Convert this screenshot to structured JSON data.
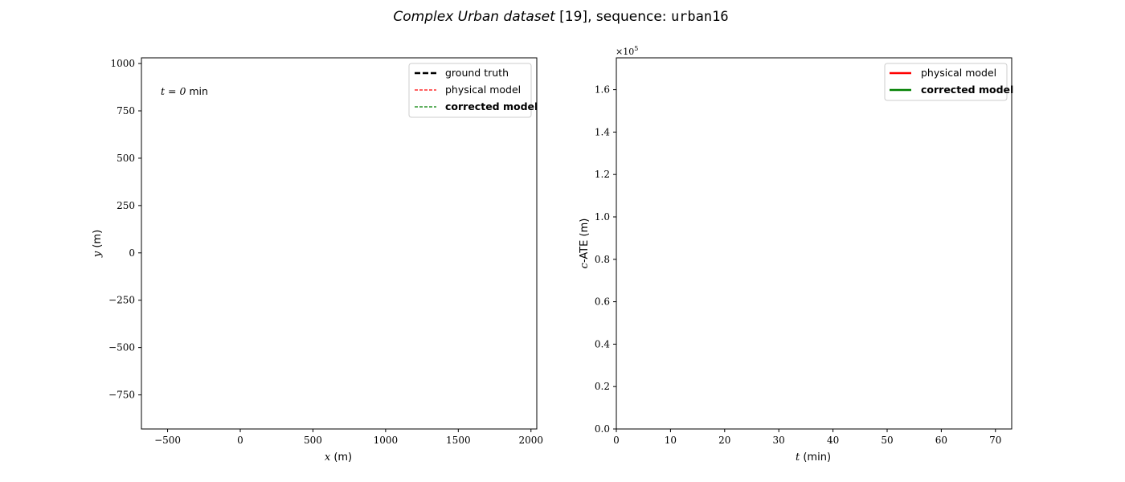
{
  "figure": {
    "title_italic": "Complex Urban dataset",
    "title_rest": " [19], sequence: ",
    "title_mono": "urban16"
  },
  "chart_data": [
    {
      "type": "line",
      "title": "",
      "xlabel_var": "x",
      "xlabel_unit": " (m)",
      "ylabel_var": "y",
      "ylabel_unit": " (m)",
      "xlim": [
        -680,
        2040
      ],
      "ylim": [
        -930,
        1030
      ],
      "xticks": [
        {
          "value": -500,
          "label": "−500"
        },
        {
          "value": 0,
          "label": "0"
        },
        {
          "value": 500,
          "label": "500"
        },
        {
          "value": 1000,
          "label": "1000"
        },
        {
          "value": 1500,
          "label": "1500"
        },
        {
          "value": 2000,
          "label": "2000"
        }
      ],
      "yticks": [
        {
          "value": -750,
          "label": "−750"
        },
        {
          "value": -500,
          "label": "−500"
        },
        {
          "value": -250,
          "label": "−250"
        },
        {
          "value": 0,
          "label": "0"
        },
        {
          "value": 250,
          "label": "250"
        },
        {
          "value": 500,
          "label": "500"
        },
        {
          "value": 750,
          "label": "750"
        },
        {
          "value": 1000,
          "label": "1000"
        }
      ],
      "grid": false,
      "legend_position": "top-right",
      "annotation_var": "t = 0",
      "annotation_unit": " min",
      "series": [
        {
          "name": "ground truth",
          "color": "#000000",
          "style": "dashed",
          "bold": false,
          "x": [],
          "y": []
        },
        {
          "name": "physical model",
          "color": "#ff0000",
          "style": "dashed",
          "bold": false,
          "x": [],
          "y": []
        },
        {
          "name": "corrected model",
          "color": "#008000",
          "style": "dashed",
          "bold": true,
          "x": [],
          "y": []
        }
      ]
    },
    {
      "type": "line",
      "title": "",
      "xlabel_var": "t",
      "xlabel_unit": " (min)",
      "ylabel_var": "c",
      "ylabel_unit": "-ATE (m)",
      "xlim": [
        0,
        73
      ],
      "ylim": [
        0,
        1.75
      ],
      "y_multiplier": "×10",
      "y_multiplier_exp": "5",
      "xticks": [
        {
          "value": 0,
          "label": "0"
        },
        {
          "value": 10,
          "label": "10"
        },
        {
          "value": 20,
          "label": "20"
        },
        {
          "value": 30,
          "label": "30"
        },
        {
          "value": 40,
          "label": "40"
        },
        {
          "value": 50,
          "label": "50"
        },
        {
          "value": 60,
          "label": "60"
        },
        {
          "value": 70,
          "label": "70"
        }
      ],
      "yticks": [
        {
          "value": 0,
          "label": "0.0"
        },
        {
          "value": 0.2,
          "label": "0.2"
        },
        {
          "value": 0.4,
          "label": "0.4"
        },
        {
          "value": 0.6,
          "label": "0.6"
        },
        {
          "value": 0.8,
          "label": "0.8"
        },
        {
          "value": 1.0,
          "label": "1.0"
        },
        {
          "value": 1.2,
          "label": "1.2"
        },
        {
          "value": 1.4,
          "label": "1.4"
        },
        {
          "value": 1.6,
          "label": "1.6"
        }
      ],
      "grid": false,
      "legend_position": "top-right",
      "series": [
        {
          "name": "physical model",
          "color": "#ff0000",
          "style": "solid",
          "bold": false,
          "x": [],
          "y": []
        },
        {
          "name": "corrected model",
          "color": "#008000",
          "style": "solid",
          "bold": true,
          "x": [],
          "y": []
        }
      ]
    }
  ]
}
